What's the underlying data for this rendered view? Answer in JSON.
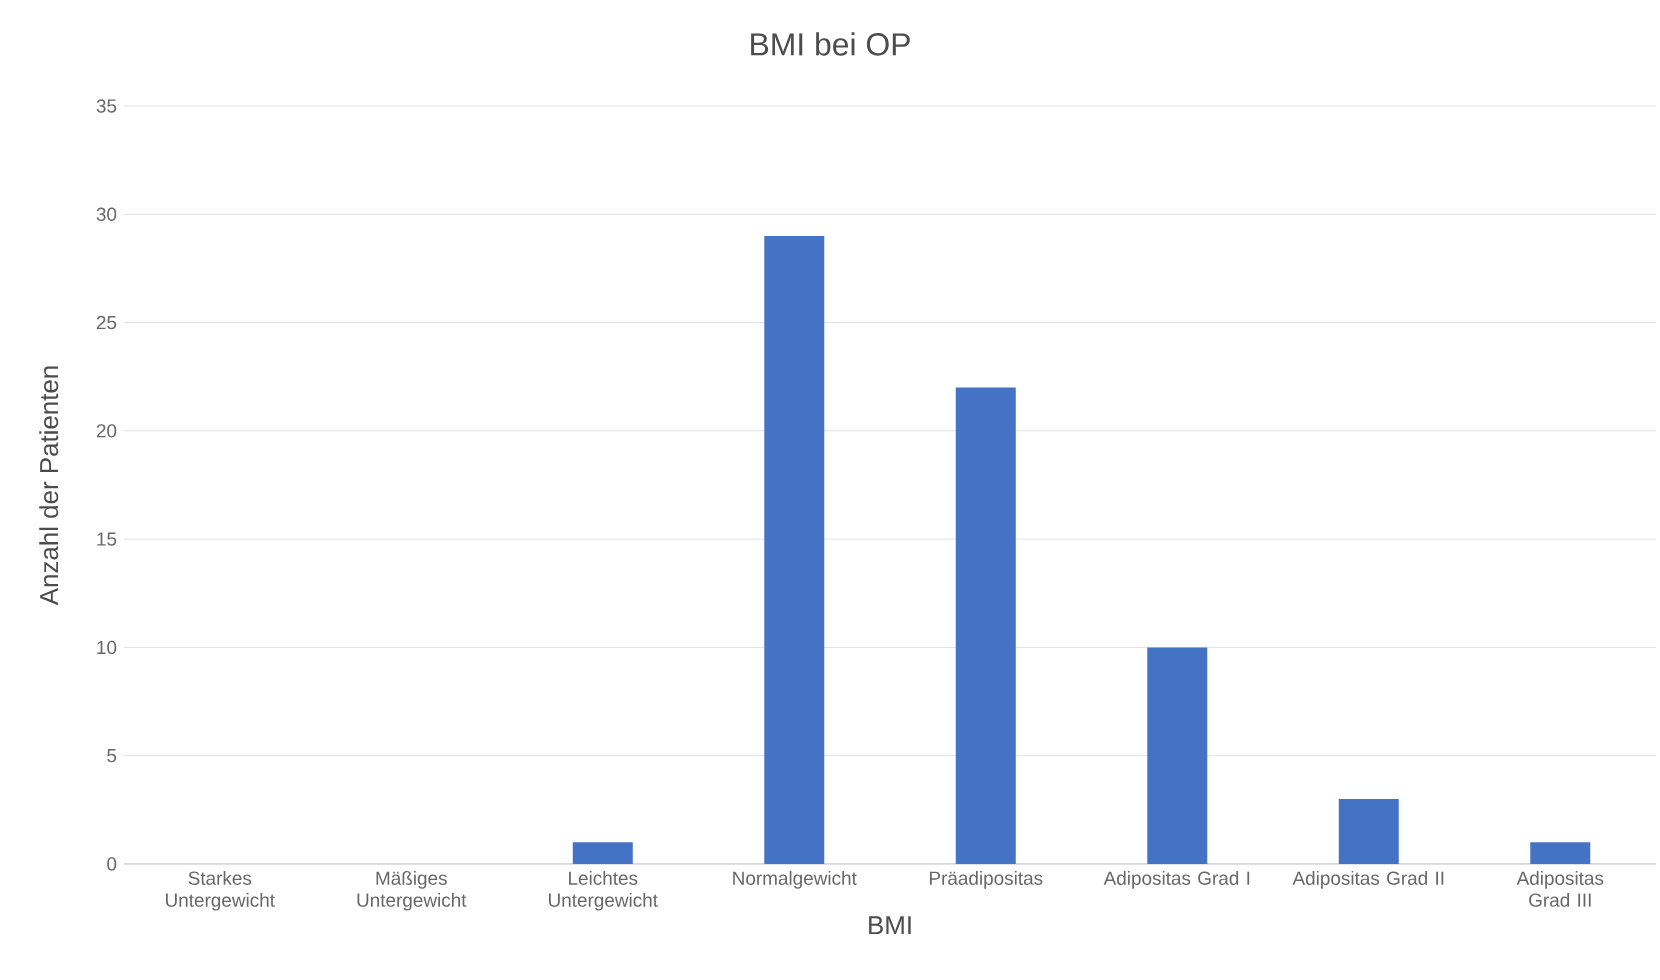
{
  "chart_data": {
    "type": "bar",
    "title": "BMI bei OP",
    "xlabel": "BMI",
    "ylabel": "Anzahl der Patienten",
    "categories": [
      "Starkes Untergewicht",
      "Mäßiges Untergewicht",
      "Leichtes Untergewicht",
      "Normalgewicht",
      "Präadipositas",
      "Adipositas Grad I",
      "Adipositas Grad II",
      "Adipositas Grad III"
    ],
    "values": [
      0,
      0,
      1,
      29,
      22,
      10,
      3,
      1
    ],
    "color": "#4472c4",
    "ylim": [
      0,
      35
    ],
    "yticks": [
      0,
      5,
      10,
      15,
      20,
      25,
      30,
      35
    ],
    "grid": "y"
  }
}
